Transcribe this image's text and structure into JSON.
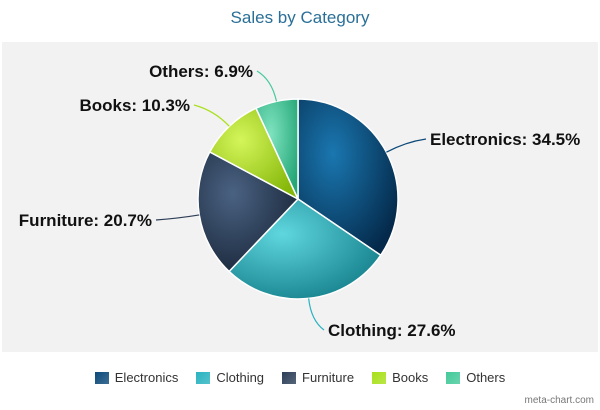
{
  "chart_data": {
    "type": "pie",
    "title": "Sales by Category",
    "categories": [
      "Electronics",
      "Clothing",
      "Furniture",
      "Books",
      "Others"
    ],
    "values": [
      34.5,
      27.6,
      20.7,
      10.3,
      6.9
    ],
    "labels": [
      "Electronics: 34.5%",
      "Clothing: 27.6%",
      "Furniture: 20.7%",
      "Books: 10.3%",
      "Others: 6.9%"
    ],
    "colors": [
      "#0d4a7a",
      "#2ab3c0",
      "#2c3e57",
      "#a8e01a",
      "#44c99a"
    ],
    "legend_position": "bottom"
  },
  "footer": {
    "credit": "meta-chart.com"
  }
}
